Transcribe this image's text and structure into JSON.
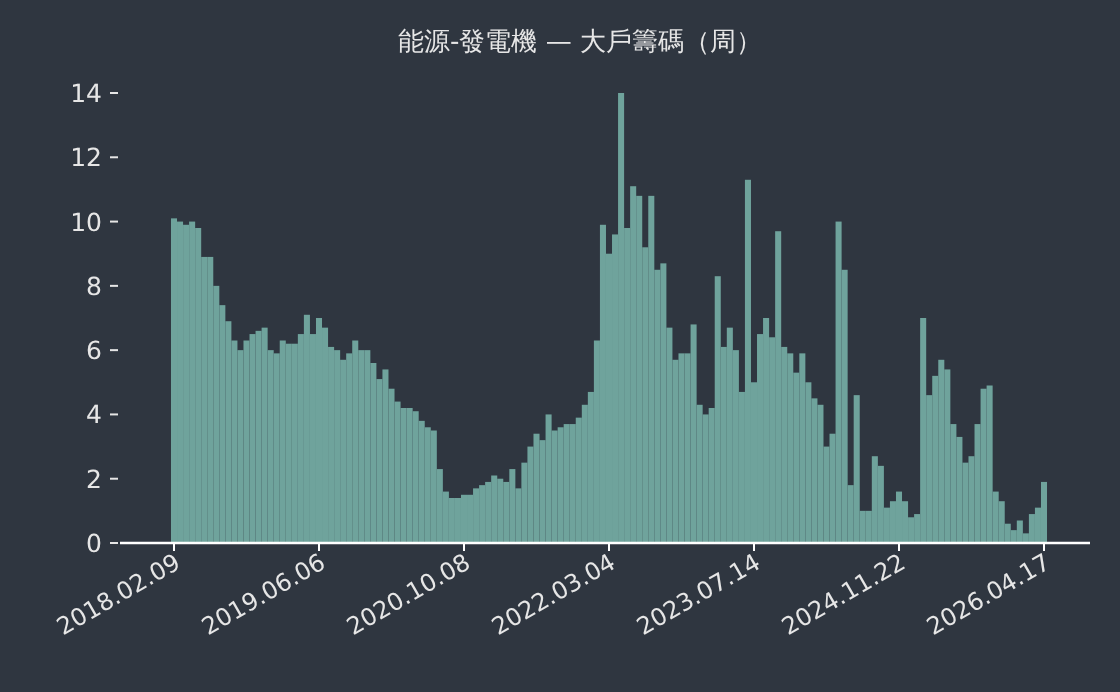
{
  "chart_data": {
    "type": "bar",
    "title": "能源-發電機 — 大戶籌碼（周）",
    "categories": [
      "2018.02.09",
      null,
      null,
      null,
      null,
      null,
      null,
      null,
      null,
      null,
      null,
      null,
      null,
      null,
      null,
      null,
      null,
      null,
      null,
      null,
      null,
      null,
      null,
      null,
      "2019.06.06",
      null,
      null,
      null,
      null,
      null,
      null,
      null,
      null,
      null,
      null,
      null,
      null,
      null,
      null,
      null,
      null,
      null,
      null,
      null,
      null,
      null,
      null,
      null,
      "2020.10.08",
      null,
      null,
      null,
      null,
      null,
      null,
      null,
      null,
      null,
      null,
      null,
      null,
      null,
      null,
      null,
      null,
      null,
      null,
      null,
      null,
      null,
      null,
      null,
      "2022.03.04",
      null,
      null,
      null,
      null,
      null,
      null,
      null,
      null,
      null,
      null,
      null,
      null,
      null,
      null,
      null,
      null,
      null,
      null,
      null,
      null,
      null,
      null,
      null,
      "2023.07.14",
      null,
      null,
      null,
      null,
      null,
      null,
      null,
      null,
      null,
      null,
      null,
      null,
      null,
      null,
      null,
      null,
      null,
      null,
      null,
      null,
      null,
      null,
      null,
      "2024.11.22",
      null,
      null,
      null,
      null,
      null,
      null,
      null,
      null,
      null,
      null,
      null,
      null,
      null,
      null,
      null,
      null,
      null,
      null,
      null,
      null,
      null,
      null,
      null,
      "2026.04.17"
    ],
    "values": [
      10.1,
      10.0,
      9.9,
      10.0,
      9.8,
      8.9,
      8.9,
      8.0,
      7.4,
      6.9,
      6.3,
      6.0,
      6.3,
      6.5,
      6.6,
      6.7,
      6.0,
      5.9,
      6.3,
      6.2,
      6.2,
      6.5,
      7.1,
      6.5,
      7.0,
      6.7,
      6.1,
      6.0,
      5.7,
      5.9,
      6.3,
      6.0,
      6.0,
      5.6,
      5.1,
      5.4,
      4.8,
      4.4,
      4.2,
      4.2,
      4.1,
      3.8,
      3.6,
      3.5,
      2.3,
      1.6,
      1.4,
      1.4,
      1.5,
      1.5,
      1.7,
      1.8,
      1.9,
      2.1,
      2.0,
      1.9,
      2.3,
      1.7,
      2.5,
      3.0,
      3.4,
      3.2,
      4.0,
      3.5,
      3.6,
      3.7,
      3.7,
      3.9,
      4.3,
      4.7,
      6.3,
      9.9,
      9.0,
      9.6,
      14.0,
      9.8,
      11.1,
      10.8,
      9.2,
      10.8,
      8.5,
      8.7,
      6.7,
      5.7,
      5.9,
      5.9,
      6.8,
      4.3,
      4.0,
      4.2,
      8.3,
      6.1,
      6.7,
      6.0,
      4.7,
      11.3,
      5.0,
      6.5,
      7.0,
      6.4,
      9.7,
      6.1,
      5.9,
      5.3,
      5.9,
      5.0,
      4.5,
      4.3,
      3.0,
      3.4,
      10.0,
      8.5,
      1.8,
      4.6,
      1.0,
      1.0,
      2.7,
      2.4,
      1.1,
      1.3,
      1.6,
      1.3,
      0.8,
      0.9,
      7.0,
      4.6,
      5.2,
      5.7,
      5.4,
      3.7,
      3.3,
      2.5,
      2.7,
      3.7,
      4.8,
      4.9,
      1.6,
      1.3,
      0.6,
      0.4,
      0.7,
      0.3,
      0.9,
      1.1,
      1.9
    ],
    "color": "#6fa39c",
    "ylim": [
      0,
      14
    ],
    "yticks": [
      0,
      2,
      4,
      6,
      8,
      10,
      12,
      14
    ]
  }
}
